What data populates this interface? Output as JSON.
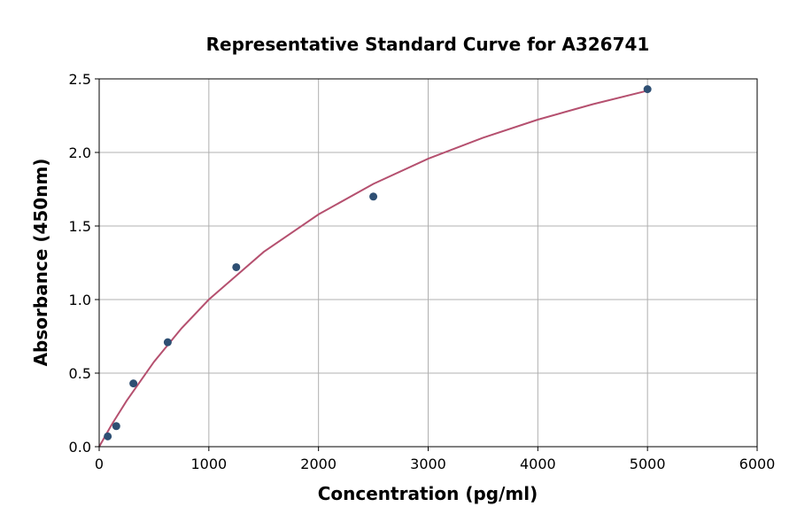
{
  "chart_data": {
    "type": "scatter",
    "title": "Representative Standard Curve for A326741",
    "xlabel": "Concentration (pg/ml)",
    "ylabel": "Absorbance (450nm)",
    "xlim": [
      0,
      6000
    ],
    "ylim": [
      0,
      2.5
    ],
    "xticks": [
      0,
      1000,
      2000,
      3000,
      4000,
      5000,
      6000
    ],
    "yticks": [
      "0.0",
      "0.5",
      "1.0",
      "1.5",
      "2.0",
      "2.5"
    ],
    "grid": true,
    "points": {
      "x": [
        78,
        156,
        312,
        625,
        1250,
        2500,
        5000
      ],
      "y": [
        0.07,
        0.14,
        0.43,
        0.71,
        1.22,
        1.7,
        2.43
      ],
      "color": "#2e4f73"
    },
    "fit_curve": {
      "x": [
        0,
        100,
        125,
        250,
        500,
        750,
        1000,
        1500,
        2000,
        2500,
        3000,
        3500,
        4000,
        4500,
        5000
      ],
      "y": [
        0,
        0.132,
        0.163,
        0.312,
        0.577,
        0.804,
        1.0,
        1.324,
        1.579,
        1.786,
        1.957,
        2.1,
        2.223,
        2.328,
        2.42
      ],
      "color": "#b5506f"
    }
  }
}
